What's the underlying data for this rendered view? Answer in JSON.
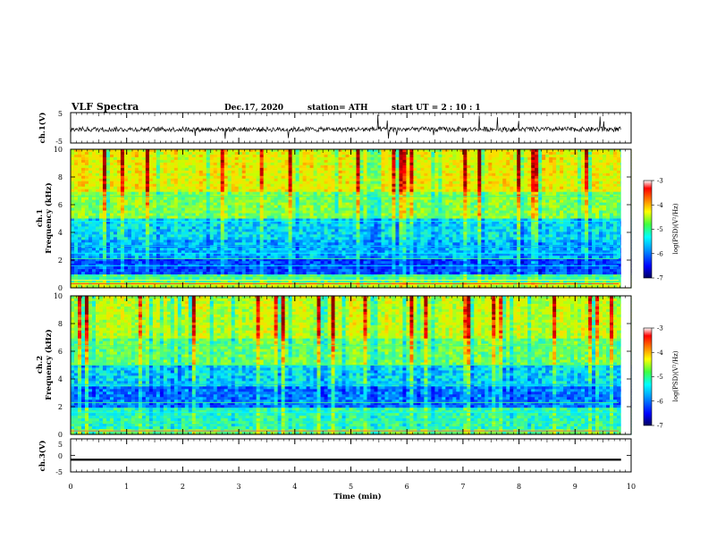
{
  "header": {
    "title": "VLF Spectra",
    "date": "Dec.17, 2020",
    "station": "station= ATH",
    "start_ut": "start  UT  =   2 : 10 : 1"
  },
  "colors": {
    "spectrogram_scale": [
      "#00007a",
      "#0000ff",
      "#00a0ff",
      "#00ffff",
      "#60ff60",
      "#ffff00",
      "#ff8000",
      "#ff0000",
      "#800000"
    ]
  },
  "chart_data": [
    {
      "type": "line",
      "panel": "ch1-waveform",
      "ylabel": "ch.1(V)",
      "ylim": [
        -5,
        5
      ],
      "yticks": [
        "5",
        "-5"
      ],
      "xlim": [
        0,
        10
      ],
      "description_values": {
        "baseline_v": -0.5,
        "noise_amplitude_v": 0.8,
        "spikes_v": [
          -4.5,
          4.5
        ]
      }
    },
    {
      "type": "heatmap",
      "panel": "ch1-spectrogram",
      "ylabel_line1": "ch.1",
      "ylabel_line2": "Frequency (kHz)",
      "ylim": [
        0,
        10
      ],
      "yticks": [
        "0",
        "2",
        "4",
        "6",
        "8",
        "10"
      ],
      "xlim": [
        0,
        10
      ],
      "colorbar": {
        "label": "log(PSD)(V²/Hz)",
        "range": [
          -7,
          -3
        ],
        "ticks": [
          "-3",
          "-4",
          "-5",
          "-6",
          "-7"
        ]
      },
      "band_levels_by_freq_khz": [
        [
          0,
          0.3,
          -4.6
        ],
        [
          0.3,
          1.0,
          -5.2
        ],
        [
          1.0,
          2.2,
          -6.2
        ],
        [
          2.2,
          3.5,
          -5.8
        ],
        [
          3.5,
          5.0,
          -5.6
        ],
        [
          5.0,
          7.0,
          -4.9
        ],
        [
          7.0,
          10.0,
          -4.4
        ]
      ]
    },
    {
      "type": "heatmap",
      "panel": "ch2-spectrogram",
      "ylabel_line1": "ch.2",
      "ylabel_line2": "Frequency (kHz)",
      "ylim": [
        0,
        10
      ],
      "yticks": [
        "0",
        "2",
        "4",
        "6",
        "8",
        "10"
      ],
      "xlim": [
        0,
        10
      ],
      "colorbar": {
        "label": "log(PSD)(V²/Hz)",
        "range": [
          -7,
          -3
        ],
        "ticks": [
          "-3",
          "-4",
          "-5",
          "-6",
          "-7"
        ]
      },
      "band_levels_by_freq_khz": [
        [
          0,
          0.3,
          -5.0
        ],
        [
          0.3,
          2.0,
          -5.3
        ],
        [
          2.0,
          3.5,
          -6.0
        ],
        [
          3.5,
          5.0,
          -5.6
        ],
        [
          5.0,
          7.0,
          -5.0
        ],
        [
          7.0,
          10.0,
          -4.6
        ]
      ]
    },
    {
      "type": "line",
      "panel": "ch3-waveform",
      "ylabel": "ch.3(V)",
      "ylim": [
        -5,
        5
      ],
      "yticks": [
        "5",
        "0",
        "-5"
      ],
      "xlim": [
        0,
        10
      ],
      "description_values": {
        "baseline_v": -1.3,
        "noise_amplitude_v": 0.3
      }
    }
  ],
  "xaxis": {
    "label": "Time (min)",
    "range": [
      0,
      10
    ],
    "ticks": [
      "0",
      "1",
      "2",
      "3",
      "4",
      "5",
      "6",
      "7",
      "8",
      "9",
      "10"
    ]
  }
}
